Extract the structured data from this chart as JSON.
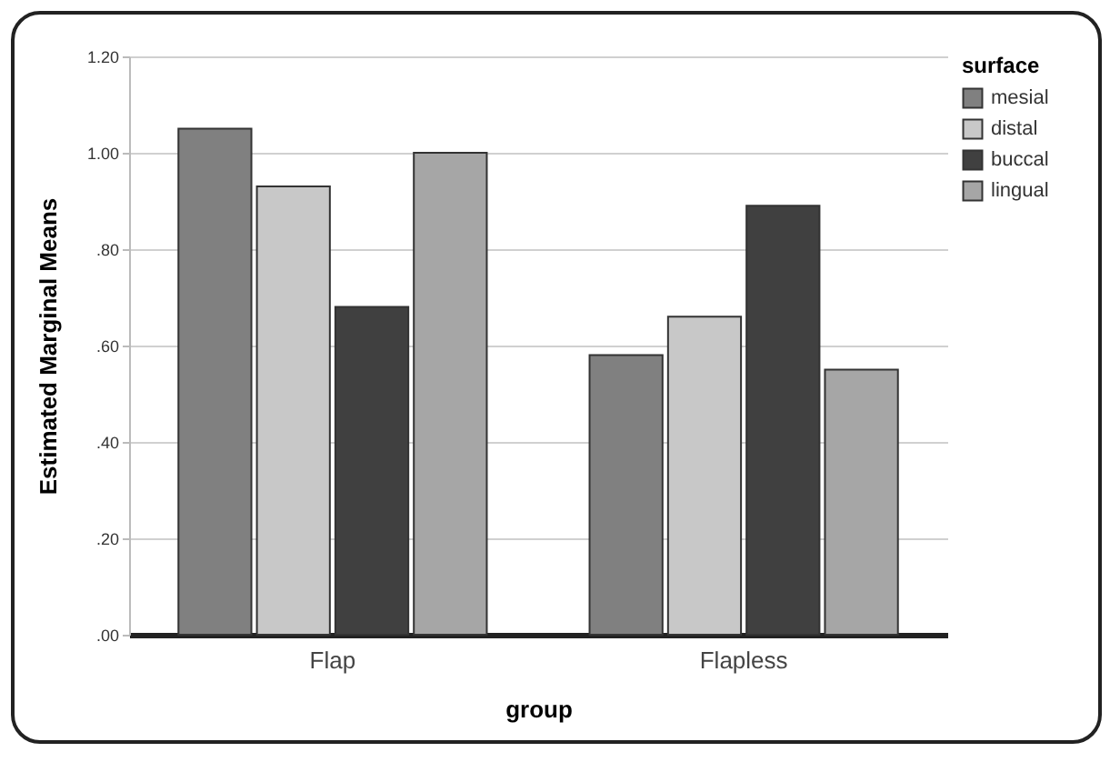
{
  "chart_data": {
    "type": "bar",
    "xlabel": "group",
    "ylabel": "Estimated Marginal Means",
    "legend_title": "surface",
    "categories": [
      "Flap",
      "Flapless"
    ],
    "series": [
      {
        "name": "mesial",
        "color": "#808080",
        "values": [
          1.05,
          0.58
        ]
      },
      {
        "name": "distal",
        "color": "#c8c8c8",
        "values": [
          0.93,
          0.66
        ]
      },
      {
        "name": "buccal",
        "color": "#404040",
        "values": [
          0.68,
          0.89
        ]
      },
      {
        "name": "lingual",
        "color": "#a6a6a6",
        "values": [
          1.0,
          0.55
        ]
      }
    ],
    "ylim": [
      0,
      1.2
    ],
    "yticks": [
      {
        "value": 0,
        "label": ".00"
      },
      {
        "value": 0.2,
        "label": ".20"
      },
      {
        "value": 0.4,
        "label": ".40"
      },
      {
        "value": 0.6,
        "label": ".60"
      },
      {
        "value": 0.8,
        "label": ".80"
      },
      {
        "value": 1,
        "label": "1.00"
      },
      {
        "value": 1.2,
        "label": "1.20"
      }
    ],
    "grid": "y",
    "legend": "top right"
  }
}
